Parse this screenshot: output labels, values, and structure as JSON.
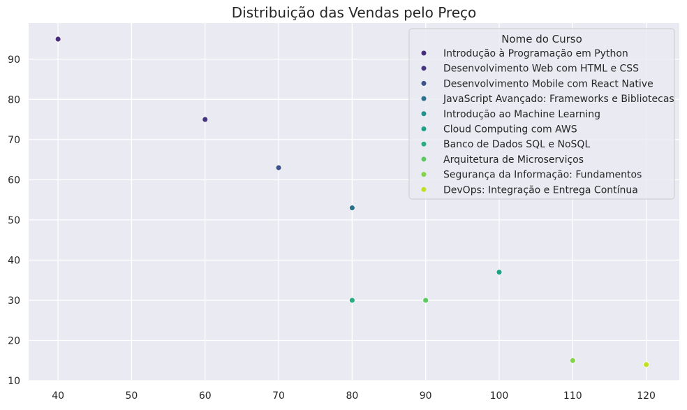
{
  "chart_data": {
    "type": "scatter",
    "title": "Distribuição das Vendas pelo Preço",
    "xlabel": "",
    "ylabel": "",
    "xlim": [
      36,
      124.5
    ],
    "ylim": [
      10,
      99
    ],
    "x_ticks": [
      40,
      50,
      60,
      70,
      80,
      90,
      100,
      110,
      120
    ],
    "y_ticks": [
      10,
      20,
      30,
      40,
      50,
      60,
      70,
      80,
      90
    ],
    "grid": true,
    "legend": {
      "title": "Nome do Curso",
      "placement": "upper right"
    },
    "series": [
      {
        "name": "Introdução à Programação em Python",
        "color": "#472d7b",
        "points": [
          {
            "x": 40,
            "y": 95
          }
        ]
      },
      {
        "name": "Desenvolvimento Web com HTML e CSS",
        "color": "#463480",
        "points": [
          {
            "x": 60,
            "y": 75
          }
        ]
      },
      {
        "name": "Desenvolvimento Mobile com React Native",
        "color": "#3b528b",
        "points": [
          {
            "x": 70,
            "y": 63
          }
        ]
      },
      {
        "name": "JavaScript Avançado: Frameworks e Bibliotecas",
        "color": "#2c728e",
        "points": [
          {
            "x": 80,
            "y": 53
          }
        ]
      },
      {
        "name": "Introdução ao Machine Learning",
        "color": "#21918c",
        "points": []
      },
      {
        "name": "Cloud Computing com AWS",
        "color": "#1fa187",
        "points": [
          {
            "x": 100,
            "y": 37
          }
        ]
      },
      {
        "name": "Banco de Dados SQL e NoSQL",
        "color": "#28ae80",
        "points": [
          {
            "x": 80,
            "y": 30
          }
        ]
      },
      {
        "name": "Arquitetura de Microserviços",
        "color": "#5ec962",
        "points": [
          {
            "x": 90,
            "y": 30
          }
        ]
      },
      {
        "name": "Segurança da Informação: Fundamentos",
        "color": "#84d44b",
        "points": [
          {
            "x": 110,
            "y": 15
          }
        ]
      },
      {
        "name": "DevOps: Integração e Entrega Contínua",
        "color": "#c2df23",
        "points": [
          {
            "x": 120,
            "y": 14
          }
        ]
      }
    ]
  },
  "colors": {
    "plot_background": "#eaeaf2",
    "grid": "#ffffff",
    "tick_text": "#262626"
  }
}
